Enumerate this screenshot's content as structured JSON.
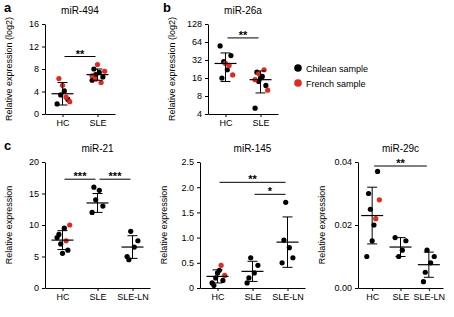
{
  "chart_data": [
    {
      "type": "scatter",
      "panel_label": "a",
      "title": "miR-494",
      "y_label": "Relative expression (log2)",
      "categories": [
        "HC",
        "SLE"
      ],
      "series": [
        {
          "color": "#000000",
          "values": [
            [
              1.8,
              3.4,
              4.1,
              2.6
            ],
            [
              6.0,
              7.0,
              7.4,
              6.6,
              8.0
            ]
          ]
        },
        {
          "color": "#e8261c",
          "values": [
            [
              6.3,
              5.1,
              3.0,
              2.2
            ],
            [
              8.8,
              5.6,
              7.6,
              6.8,
              6.2
            ]
          ]
        }
      ],
      "means": [
        3.6,
        7.0
      ],
      "errors": [
        2.0,
        1.0
      ],
      "ylim": [
        0,
        16
      ],
      "yticks": [
        0,
        4,
        8,
        12,
        16
      ],
      "annotations": [
        {
          "text": "**",
          "from": 0,
          "to": 1
        }
      ]
    },
    {
      "type": "scatter",
      "panel_label": "b",
      "title": "miR-26a",
      "y_label": "Relative expression (log2)",
      "categories": [
        "HC",
        "SLE"
      ],
      "log": "y",
      "legend": "right",
      "series": [
        {
          "name": "Chilean sample",
          "color": "#000000",
          "values": [
            [
              55,
              30,
              22,
              38,
              16
            ],
            [
              5,
              14,
              17,
              12,
              20,
              16
            ]
          ]
        },
        {
          "name": "French sample",
          "color": "#e8261c",
          "values": [
            [
              28,
              26,
              18
            ],
            [
              22,
              10,
              15,
              19
            ]
          ]
        }
      ],
      "means": [
        28,
        15
      ],
      "errors": [
        14,
        6
      ],
      "ylim": [
        4,
        128
      ],
      "yticks": [
        4,
        8,
        16,
        32,
        64,
        128
      ],
      "annotations": [
        {
          "text": "**",
          "from": 0,
          "to": 1
        }
      ]
    },
    {
      "type": "scatter",
      "panel_label": "c",
      "title": "miR-21",
      "y_label": "Relative expression",
      "categories": [
        "HC",
        "SLE",
        "SLE-LN"
      ],
      "series": [
        {
          "color": "#000000",
          "values": [
            [
              8,
              7,
              9.5,
              6,
              8.5,
              5.5
            ],
            [
              12,
              14,
              15.5,
              13,
              16
            ],
            [
              5,
              9,
              6.5,
              7.5,
              4.5
            ]
          ]
        },
        {
          "color": "#e8261c",
          "values": [
            [
              7.5,
              10
            ],
            [],
            []
          ]
        }
      ],
      "means": [
        7.6,
        13.5,
        6.5
      ],
      "errors": [
        1.5,
        1.5,
        1.8
      ],
      "ylim": [
        0,
        20
      ],
      "yticks": [
        0,
        5,
        10,
        15,
        20
      ],
      "annotations": [
        {
          "text": "***",
          "from": 0,
          "to": 1
        },
        {
          "text": "***",
          "from": 1,
          "to": 2
        }
      ]
    },
    {
      "type": "scatter",
      "title": "miR-145",
      "y_label": "Relative expression",
      "categories": [
        "HC",
        "SLE",
        "SLE-LN"
      ],
      "series": [
        {
          "color": "#000000",
          "values": [
            [
              0.1,
              0.2,
              0.35,
              0.15,
              0.05,
              0.3
            ],
            [
              0.1,
              0.6,
              0.3,
              0.45,
              0.2
            ],
            [
              0.5,
              1.7,
              0.8,
              0.6,
              0.95
            ]
          ]
        },
        {
          "color": "#e8261c",
          "values": [
            [
              0.45,
              0.25
            ],
            [],
            []
          ]
        }
      ],
      "means": [
        0.23,
        0.33,
        0.91
      ],
      "errors": [
        0.13,
        0.2,
        0.5
      ],
      "ylim": [
        0,
        2.5
      ],
      "yticks": [
        0,
        0.5,
        {
          "value": 1,
          "label": "1.0"
        },
        1.5,
        {
          "value": 2,
          "label": "2.0"
        },
        2.5
      ],
      "annotations": [
        {
          "text": "*",
          "from": 1,
          "to": 2
        },
        {
          "text": "**",
          "from": 0,
          "to": 2
        }
      ]
    },
    {
      "type": "scatter",
      "title": "miR-29c",
      "y_label": "Relative expression",
      "categories": [
        "HC",
        "SLE",
        "SLE-LN"
      ],
      "series": [
        {
          "color": "#000000",
          "values": [
            [
              0.01,
              0.025,
              0.02,
              0.037,
              0.03,
              0.015
            ],
            [
              0.016,
              0.01,
              0.012,
              0.015
            ],
            [
              0.002,
              0.012,
              0.008,
              0.01,
              0.005
            ]
          ]
        },
        {
          "color": "#e8261c",
          "values": [
            [
              0.022,
              0.028
            ],
            [],
            []
          ]
        }
      ],
      "means": [
        0.023,
        0.013,
        0.0074
      ],
      "errors": [
        0.009,
        0.003,
        0.004
      ],
      "ylim": [
        0,
        0.04
      ],
      "yticks": [
        {
          "value": 0,
          "label": "0.00"
        },
        0.02,
        0.04
      ],
      "annotations": [
        {
          "text": "**",
          "from": 0,
          "to": 2
        }
      ]
    }
  ]
}
